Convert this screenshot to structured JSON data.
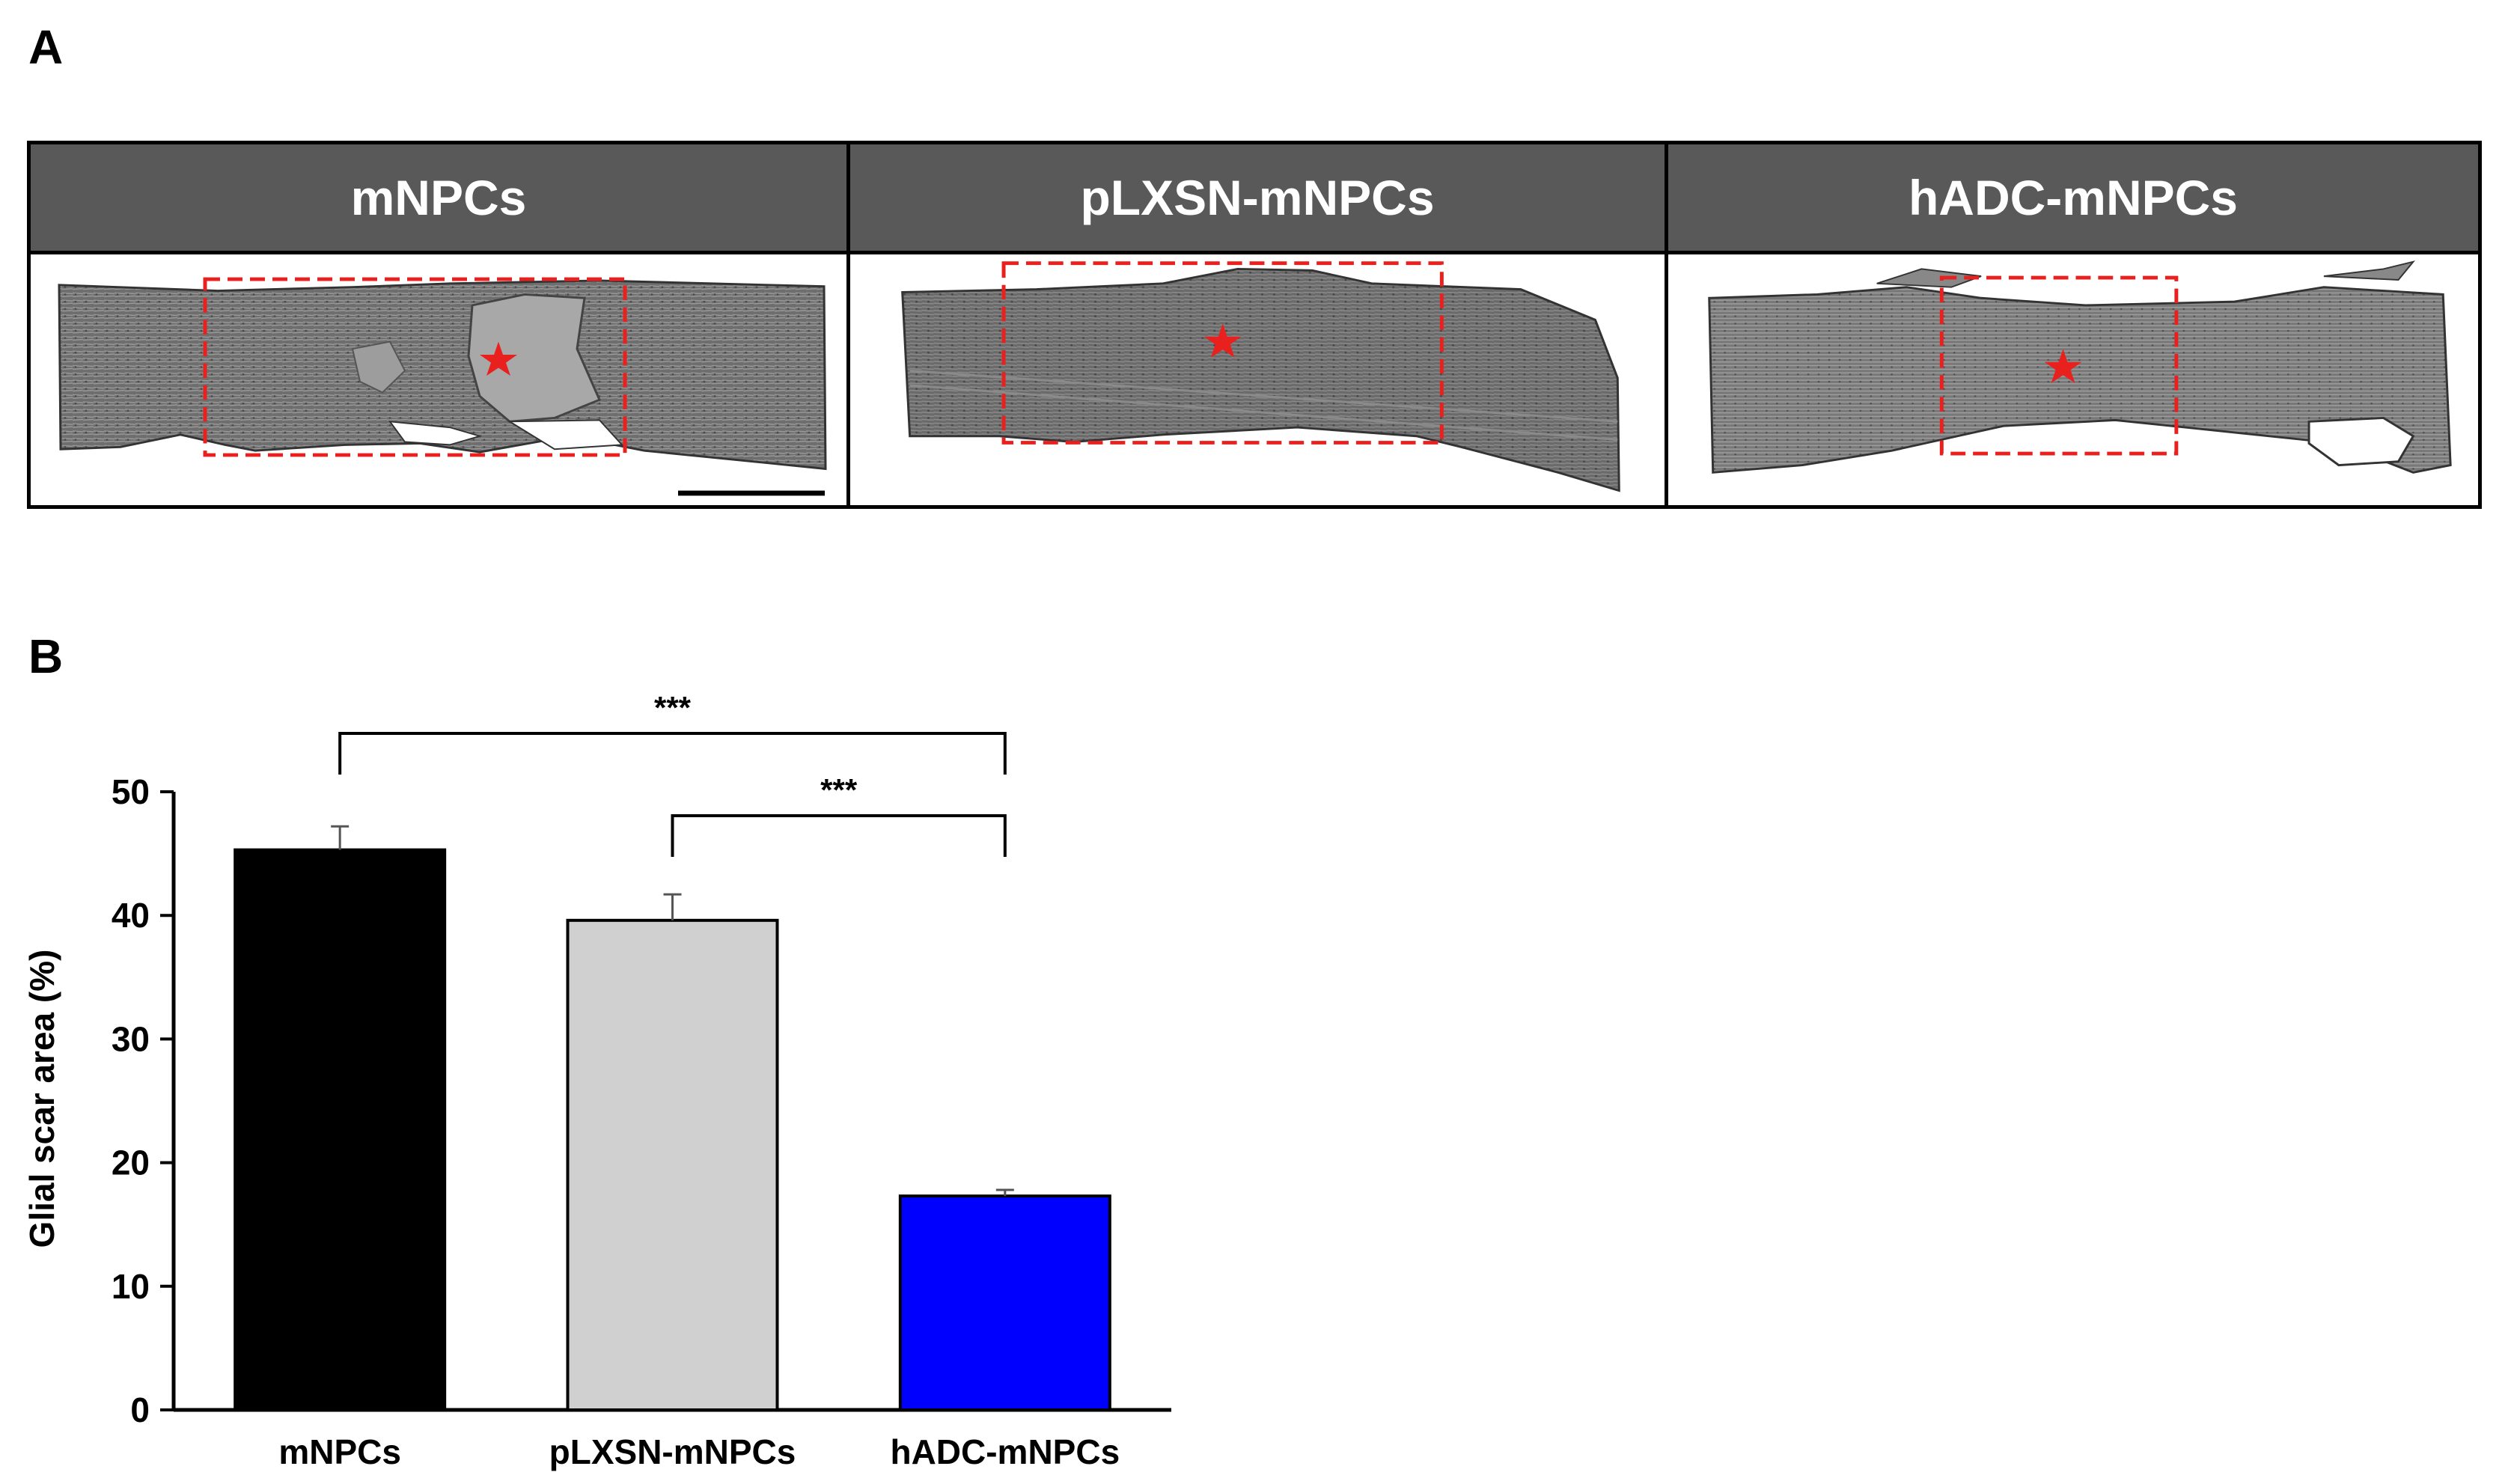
{
  "panel_a": {
    "letter": "A",
    "panels": [
      {
        "label": "mNPCs"
      },
      {
        "label": "pLXSN-mNPCs"
      },
      {
        "label": "hADC-mNPCs"
      }
    ],
    "box_color": "#e8211f",
    "star_color": "#e8211f"
  },
  "panel_b": {
    "letter": "B"
  },
  "chart_data": {
    "type": "bar",
    "categories": [
      "mNPCs",
      "pLXSN-mNPCs",
      "hADC-mNPCs"
    ],
    "values": [
      45.3,
      39.6,
      17.3
    ],
    "errors": [
      1.9,
      2.1,
      0.5
    ],
    "colors": [
      "#000000",
      "#d0d0d0",
      "#0000ff"
    ],
    "ylabel": "Glial scar area (%)",
    "ylim": [
      0,
      50
    ],
    "yticks": [
      0,
      10,
      20,
      30,
      40,
      50
    ],
    "grid": false,
    "significance": [
      {
        "from": 0,
        "to": 2,
        "label": "***"
      },
      {
        "from": 1,
        "to": 2,
        "label": "***"
      }
    ]
  }
}
